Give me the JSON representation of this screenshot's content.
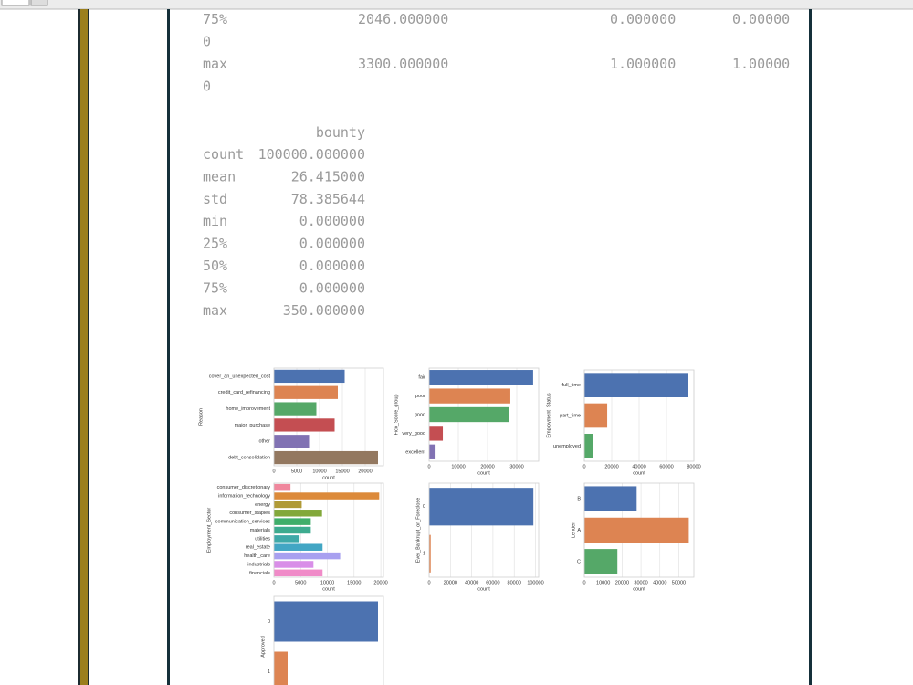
{
  "output_text": {
    "top_rows": [
      [
        "75%",
        "2046.000000",
        "0.000000",
        "0.00000"
      ],
      [
        "0"
      ],
      [
        "max",
        "3300.000000",
        "1.000000",
        "1.00000"
      ],
      [
        "0"
      ]
    ],
    "bounty_table": {
      "header": "bounty",
      "rows": [
        [
          "count",
          "100000.000000"
        ],
        [
          "mean",
          "26.415000"
        ],
        [
          "std",
          "78.385644"
        ],
        [
          "min",
          "0.000000"
        ],
        [
          "25%",
          "0.000000"
        ],
        [
          "50%",
          "0.000000"
        ],
        [
          "75%",
          "0.000000"
        ],
        [
          "max",
          "350.000000"
        ]
      ]
    }
  },
  "chart_data": [
    {
      "type": "barh",
      "ylabel": "Reason",
      "xlabel": "count",
      "categories": [
        "cover_an_unexpected_cost",
        "credit_card_refinancing",
        "home_improvement",
        "major_purchase",
        "other",
        "debt_consolidation"
      ],
      "values": [
        15500,
        14000,
        9300,
        13300,
        7700,
        22800
      ],
      "colors": [
        "#4c72b0",
        "#dd8452",
        "#55a868",
        "#c44e52",
        "#8172b3",
        "#937860"
      ],
      "xlim": [
        0,
        24000
      ],
      "xticks": [
        0,
        5000,
        10000,
        15000,
        20000
      ],
      "grid": true
    },
    {
      "type": "barh",
      "ylabel": "Fico_Score_group",
      "xlabel": "count",
      "categories": [
        "fair",
        "poor",
        "good",
        "very_good",
        "excellent"
      ],
      "values": [
        35600,
        27800,
        27200,
        4700,
        1900
      ],
      "colors": [
        "#4c72b0",
        "#dd8452",
        "#55a868",
        "#c44e52",
        "#8172b3"
      ],
      "xlim": [
        0,
        37500
      ],
      "xticks": [
        0,
        10000,
        20000,
        30000
      ],
      "grid": true
    },
    {
      "type": "barh",
      "ylabel": "Employment_Status",
      "xlabel": "count",
      "categories": [
        "full_time",
        "part_time",
        "unemployed"
      ],
      "values": [
        76000,
        16700,
        6000
      ],
      "colors": [
        "#4c72b0",
        "#dd8452",
        "#55a868"
      ],
      "xlim": [
        0,
        80000
      ],
      "xticks": [
        0,
        20000,
        40000,
        60000,
        80000
      ],
      "grid": true
    },
    {
      "type": "barh",
      "ylabel": "Employment_Sector",
      "xlabel": "count",
      "categories": [
        "consumer_discretionary",
        "information_technology",
        "energy",
        "consumer_staples",
        "communication_services",
        "materials",
        "utilities",
        "real_estate",
        "health_care",
        "industrials",
        "financials"
      ],
      "values": [
        3100,
        19700,
        5200,
        9000,
        6900,
        6900,
        4800,
        9100,
        12400,
        7400,
        9100
      ],
      "colors": [
        "#f0879d",
        "#dc8a3a",
        "#b09a36",
        "#82a83a",
        "#3fae6a",
        "#3dab8f",
        "#3ea9a8",
        "#42a6c4",
        "#a8a0f0",
        "#d98ee8",
        "#f08bc8"
      ],
      "xlim": [
        0,
        20500
      ],
      "xticks": [
        0,
        5000,
        10000,
        15000,
        20000
      ],
      "grid": true
    },
    {
      "type": "barh",
      "ylabel": "Ever_Bankrupt_or_Foreclose",
      "xlabel": "count",
      "categories": [
        "0",
        "1"
      ],
      "values": [
        98000,
        1500
      ],
      "colors": [
        "#4c72b0",
        "#dd8452"
      ],
      "xlim": [
        0,
        103000
      ],
      "xticks": [
        0,
        20000,
        40000,
        60000,
        80000,
        100000
      ],
      "grid": true
    },
    {
      "type": "barh",
      "ylabel": "Lender",
      "xlabel": "count",
      "categories": [
        "B",
        "A",
        "C"
      ],
      "values": [
        27700,
        55300,
        17500
      ],
      "colors": [
        "#4c72b0",
        "#dd8452",
        "#55a868"
      ],
      "xlim": [
        0,
        58000
      ],
      "xticks": [
        0,
        10000,
        20000,
        30000,
        40000,
        50000
      ],
      "grid": true
    },
    {
      "type": "barh",
      "ylabel": "Approved",
      "categories": [
        "0",
        "1"
      ],
      "values": [
        95000,
        12500
      ],
      "colors": [
        "#4c72b0",
        "#dd8452"
      ],
      "xlim": [
        0,
        100000
      ],
      "grid": true
    }
  ]
}
